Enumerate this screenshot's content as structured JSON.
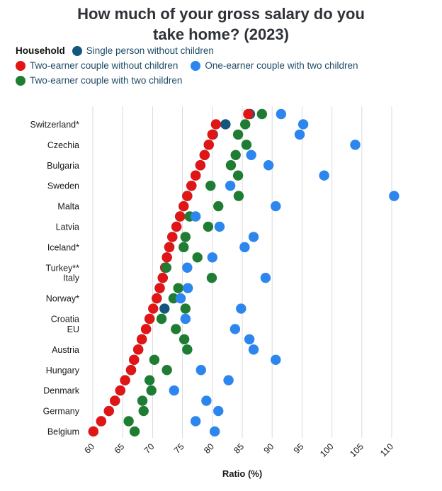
{
  "title": "How much of your gross salary do you take home? (2023)",
  "chart_data": {
    "type": "scatter",
    "title": "How much of your gross salary do you take home? (2023)",
    "xlabel": "Ratio (%)",
    "ylabel": "",
    "xlim": [
      60,
      110
    ],
    "x_ticks": [
      60,
      65,
      70,
      75,
      80,
      85,
      90,
      95,
      100,
      105,
      110
    ],
    "grid": "vertical",
    "grid_color": "#DBDBDB",
    "legend_position": "top",
    "legend_title": "Household",
    "series": [
      {
        "key": "single_person",
        "name": "Single person without children",
        "color": "#14577D"
      },
      {
        "key": "two_earner_no_children",
        "name": "Two-earner couple without children",
        "color": "#E01616"
      },
      {
        "key": "one_earner_two_children",
        "name": "One-earner couple with two children",
        "color": "#2D86EE"
      },
      {
        "key": "two_earner_two_children",
        "name": "Two-earner couple with two children",
        "color": "#1F7D33"
      }
    ],
    "draw_order": [
      "single_person",
      "two_earner_no_children",
      "two_earner_two_children",
      "one_earner_two_children"
    ],
    "rows": [
      {
        "label": "",
        "values": {
          "single_person": 86.3,
          "two_earner_no_children": 86.0,
          "one_earner_two_children": 91.5,
          "two_earner_two_children": 88.3
        }
      },
      {
        "label": "Switzerland*",
        "values": {
          "single_person": 82.2,
          "two_earner_no_children": 80.6,
          "one_earner_two_children": 95.2,
          "two_earner_two_children": 85.5
        }
      },
      {
        "label": "",
        "values": {
          "single_person": 80.1,
          "two_earner_no_children": 80.0,
          "one_earner_two_children": 94.6,
          "two_earner_two_children": 84.3
        }
      },
      {
        "label": "Czechia",
        "values": {
          "single_person": 79.4,
          "two_earner_no_children": 79.4,
          "one_earner_two_children": 103.9,
          "two_earner_two_children": 85.7
        }
      },
      {
        "label": "",
        "values": {
          "single_person": 78.7,
          "two_earner_no_children": 78.7,
          "one_earner_two_children": 86.5,
          "two_earner_two_children": 83.9
        }
      },
      {
        "label": "Bulgaria",
        "values": {
          "single_person": 78.0,
          "two_earner_no_children": 78.0,
          "one_earner_two_children": 89.4,
          "two_earner_two_children": 83.1
        }
      },
      {
        "label": "",
        "values": {
          "single_person": 77.2,
          "two_earner_no_children": 77.2,
          "one_earner_two_children": 98.7,
          "two_earner_two_children": 84.3
        }
      },
      {
        "label": "Sweden",
        "values": {
          "single_person": 76.5,
          "two_earner_no_children": 76.5,
          "one_earner_two_children": 83.0,
          "two_earner_two_children": 79.7
        }
      },
      {
        "label": "",
        "values": {
          "single_person": 75.8,
          "two_earner_no_children": 75.8,
          "one_earner_two_children": 110.4,
          "two_earner_two_children": 84.4
        }
      },
      {
        "label": "Malta",
        "values": {
          "single_person": 75.2,
          "two_earner_no_children": 75.2,
          "one_earner_two_children": 90.6,
          "two_earner_two_children": 81.0
        }
      },
      {
        "label": "",
        "values": {
          "single_person": 74.6,
          "two_earner_no_children": 74.6,
          "one_earner_two_children": 77.2,
          "two_earner_two_children": 76.2
        }
      },
      {
        "label": "Latvia",
        "values": {
          "single_person": 74.0,
          "two_earner_no_children": 74.0,
          "one_earner_two_children": 81.2,
          "two_earner_two_children": 79.3
        }
      },
      {
        "label": "",
        "values": {
          "single_person": 73.3,
          "two_earner_no_children": 73.3,
          "one_earner_two_children": 86.9,
          "two_earner_two_children": 75.5
        }
      },
      {
        "label": "Iceland*",
        "values": {
          "single_person": 72.8,
          "two_earner_no_children": 72.8,
          "one_earner_two_children": 85.4,
          "two_earner_two_children": 75.2
        }
      },
      {
        "label": "",
        "values": {
          "single_person": 72.4,
          "two_earner_no_children": 72.4,
          "one_earner_two_children": 80.0,
          "two_earner_two_children": 77.5
        }
      },
      {
        "label": "Turkey**",
        "values": {
          "single_person": 72.1,
          "two_earner_no_children": 72.1,
          "one_earner_two_children": 75.8,
          "two_earner_two_children": 72.3
        }
      },
      {
        "label": "Italy",
        "values": {
          "single_person": 71.7,
          "two_earner_no_children": 71.7,
          "one_earner_two_children": 88.9,
          "two_earner_two_children": 79.9
        }
      },
      {
        "label": "",
        "values": {
          "single_person": 71.2,
          "two_earner_no_children": 71.2,
          "one_earner_two_children": 75.9,
          "two_earner_two_children": 74.3
        }
      },
      {
        "label": "Norway*",
        "values": {
          "single_person": 70.7,
          "two_earner_no_children": 70.7,
          "one_earner_two_children": 74.7,
          "two_earner_two_children": 73.5
        }
      },
      {
        "label": "",
        "values": {
          "single_person": 72.0,
          "two_earner_no_children": 70.1,
          "one_earner_two_children": 84.8,
          "two_earner_two_children": 75.5
        }
      },
      {
        "label": "Croatia",
        "values": {
          "single_person": 69.5,
          "two_earner_no_children": 69.5,
          "one_earner_two_children": 75.5,
          "two_earner_two_children": 71.5
        }
      },
      {
        "label": "EU",
        "values": {
          "single_person": 68.9,
          "two_earner_no_children": 68.9,
          "one_earner_two_children": 83.8,
          "two_earner_two_children": 73.9
        }
      },
      {
        "label": "",
        "values": {
          "single_person": 68.2,
          "two_earner_no_children": 68.2,
          "one_earner_two_children": 86.2,
          "two_earner_two_children": 75.3
        }
      },
      {
        "label": "Austria",
        "values": {
          "single_person": 67.6,
          "two_earner_no_children": 67.6,
          "one_earner_two_children": 86.9,
          "two_earner_two_children": 75.8
        }
      },
      {
        "label": "",
        "values": {
          "single_person": 66.9,
          "two_earner_no_children": 66.9,
          "one_earner_two_children": 90.6,
          "two_earner_two_children": 70.3
        }
      },
      {
        "label": "Hungary",
        "values": {
          "single_person": 66.4,
          "two_earner_no_children": 66.4,
          "one_earner_two_children": 78.1,
          "two_earner_two_children": 72.4
        }
      },
      {
        "label": "",
        "values": {
          "single_person": 65.4,
          "two_earner_no_children": 65.4,
          "one_earner_two_children": 82.7,
          "two_earner_two_children": 69.5
        }
      },
      {
        "label": "Denmark",
        "values": {
          "single_person": 64.6,
          "two_earner_no_children": 64.6,
          "one_earner_two_children": 73.6,
          "two_earner_two_children": 69.8
        }
      },
      {
        "label": "",
        "values": {
          "single_person": 63.7,
          "two_earner_no_children": 63.7,
          "one_earner_two_children": 79.0,
          "two_earner_two_children": 68.3
        }
      },
      {
        "label": "Germany",
        "values": {
          "single_person": 62.7,
          "two_earner_no_children": 62.7,
          "one_earner_two_children": 81.0,
          "two_earner_two_children": 68.5
        }
      },
      {
        "label": "",
        "values": {
          "single_person": 61.4,
          "two_earner_no_children": 61.4,
          "one_earner_two_children": 77.2,
          "two_earner_two_children": 66.0
        }
      },
      {
        "label": "Belgium",
        "values": {
          "single_person": 60.1,
          "two_earner_no_children": 60.1,
          "one_earner_two_children": 80.4,
          "two_earner_two_children": 67.0
        }
      }
    ]
  }
}
